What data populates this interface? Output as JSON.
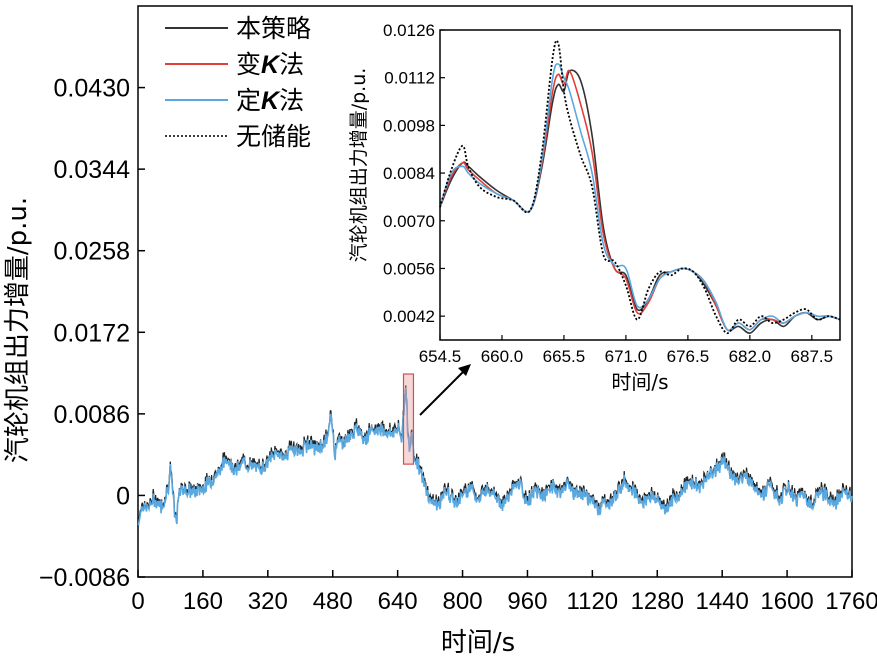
{
  "chart_data": [
    {
      "type": "line",
      "title": "",
      "xlabel": "时间/s",
      "ylabel": "汽轮机组出力增量/p.u.",
      "xlim": [
        0,
        1760
      ],
      "ylim": [
        -0.0086,
        0.0516
      ],
      "x_ticks": [
        "0",
        "160",
        "320",
        "480",
        "640",
        "800",
        "960",
        "1120",
        "1280",
        "1440",
        "1600",
        "1760"
      ],
      "y_ticks": [
        "-0.0086",
        "0",
        "0.0086",
        "0.0172",
        "0.0258",
        "0.0344",
        "0.0430"
      ],
      "y_tick_values": [
        -0.0086,
        0,
        0.0086,
        0.0172,
        0.0258,
        0.0344,
        0.043
      ],
      "x_tick_values": [
        0,
        160,
        320,
        480,
        640,
        800,
        960,
        1120,
        1280,
        1440,
        1600,
        1760
      ],
      "legend": {
        "placement": "top-left",
        "entries": [
          {
            "prefix": "本策略",
            "k": "",
            "suffix": "",
            "color": "#333333",
            "style": "solid"
          },
          {
            "prefix": "变",
            "k": "K",
            "suffix": "法",
            "color": "#e0403a",
            "style": "solid"
          },
          {
            "prefix": "定",
            "k": "K",
            "suffix": "法",
            "color": "#5aa8e0",
            "style": "solid"
          },
          {
            "prefix": "无储能",
            "k": "",
            "suffix": "",
            "color": "#000000",
            "style": "dotted"
          }
        ]
      },
      "highlight_region": {
        "x": [
          654.5,
          679
        ],
        "y": [
          0.0033,
          0.0128
        ]
      },
      "series": [
        {
          "color": "#5aa8e0",
          "x": [
            0,
            10,
            20,
            40,
            60,
            75,
            80,
            85,
            90,
            95,
            100,
            110,
            120,
            140,
            160,
            180,
            200,
            220,
            240,
            260,
            280,
            300,
            320,
            340,
            360,
            380,
            400,
            420,
            440,
            460,
            470,
            475,
            480,
            485,
            490,
            500,
            520,
            540,
            560,
            580,
            600,
            620,
            640,
            650,
            655,
            660,
            665,
            670,
            675,
            680,
            690,
            700,
            720,
            740,
            760,
            780,
            800,
            820,
            840,
            860,
            880,
            900,
            920,
            940,
            960,
            980,
            1000,
            1020,
            1040,
            1060,
            1080,
            1100,
            1120,
            1140,
            1150,
            1160,
            1180,
            1200,
            1220,
            1240,
            1260,
            1280,
            1300,
            1320,
            1340,
            1360,
            1380,
            1400,
            1420,
            1440,
            1460,
            1480,
            1500,
            1520,
            1540,
            1560,
            1580,
            1600,
            1620,
            1640,
            1660,
            1680,
            1700,
            1720,
            1740,
            1760
          ],
          "values": [
            -0.003,
            -0.001,
            -0.0015,
            -0.0005,
            -0.0012,
            0.001,
            0.003,
            0.0005,
            -0.002,
            -0.003,
            0.0,
            0.0008,
            0.0005,
            0.0003,
            0.0008,
            0.0015,
            0.0025,
            0.004,
            0.0025,
            0.0035,
            0.003,
            0.0028,
            0.0035,
            0.0045,
            0.004,
            0.005,
            0.0045,
            0.0055,
            0.0048,
            0.0055,
            0.0065,
            0.0085,
            0.007,
            0.004,
            0.006,
            0.0055,
            0.006,
            0.007,
            0.006,
            0.0068,
            0.007,
            0.0065,
            0.007,
            0.006,
            0.0085,
            0.012,
            0.0068,
            0.0045,
            0.0065,
            0.004,
            0.0035,
            0.0018,
            -0.0005,
            -0.001,
            0.0005,
            -0.0008,
            0.0,
            0.001,
            -0.0005,
            0.0008,
            0.0002,
            -0.0012,
            0.0005,
            0.0012,
            -0.0008,
            0.0005,
            -0.0002,
            0.001,
            0.0003,
            0.0012,
            0.0,
            0.0002,
            -0.0008,
            -0.0015,
            -0.0005,
            -0.0012,
            0.0002,
            0.0015,
            0.0005,
            -0.0008,
            0.0,
            -0.0005,
            -0.0015,
            -0.0005,
            0.0003,
            0.0015,
            0.0008,
            0.0018,
            0.0025,
            0.0035,
            0.0025,
            0.0015,
            0.002,
            0.001,
            0.0,
            0.0012,
            -0.0008,
            0.0008,
            -0.0005,
            0.0003,
            -0.0012,
            0.0005,
            -0.0002,
            -0.0008,
            0.0005,
            -0.0005
          ]
        }
      ]
    },
    {
      "type": "line",
      "title": "",
      "xlabel": "时间/s",
      "ylabel": "汽轮机组出力增量/p.u.",
      "xlim": [
        654.5,
        690
      ],
      "ylim": [
        0.0035,
        0.0126
      ],
      "x_ticks": [
        "654.5",
        "660.0",
        "665.5",
        "671.0",
        "676.5",
        "682.0",
        "687.5"
      ],
      "x_tick_values": [
        654.5,
        660.0,
        665.5,
        671.0,
        676.5,
        682.0,
        687.5
      ],
      "y_ticks": [
        "0.0042",
        "0.0056",
        "0.0070",
        "0.0084",
        "0.0098",
        "0.0112",
        "0.0126"
      ],
      "y_tick_values": [
        0.0042,
        0.0056,
        0.007,
        0.0084,
        0.0098,
        0.0112,
        0.0126
      ],
      "series": [
        {
          "name": "本策略",
          "color": "#333333",
          "style": "solid",
          "x": [
            654.5,
            655.5,
            656.5,
            657.0,
            658.0,
            659.5,
            661.0,
            662.5,
            663.5,
            664.5,
            665.0,
            665.5,
            666.0,
            667.0,
            668.0,
            669.0,
            670.0,
            671.0,
            672.0,
            673.0,
            674.0,
            675.0,
            676.0,
            677.0,
            678.0,
            679.0,
            680.0,
            681.0,
            682.0,
            683.0,
            684.0,
            685.0,
            686.0,
            687.0,
            688.0,
            689.0,
            690.0
          ],
          "values": [
            0.0074,
            0.0082,
            0.0087,
            0.0086,
            0.0083,
            0.0079,
            0.0076,
            0.0073,
            0.0085,
            0.0105,
            0.011,
            0.0108,
            0.0114,
            0.0111,
            0.0095,
            0.0068,
            0.0056,
            0.0054,
            0.0044,
            0.0047,
            0.0054,
            0.0055,
            0.0056,
            0.0055,
            0.0051,
            0.0045,
            0.0038,
            0.0039,
            0.0037,
            0.004,
            0.0041,
            0.0039,
            0.0042,
            0.0043,
            0.0041,
            0.0042,
            0.0041
          ]
        },
        {
          "name": "变K法",
          "color": "#e0403a",
          "style": "solid",
          "x": [
            654.5,
            655.5,
            656.5,
            657.0,
            658.0,
            659.5,
            661.0,
            662.5,
            663.5,
            664.5,
            665.0,
            665.5,
            666.0,
            667.0,
            668.0,
            669.0,
            670.0,
            671.0,
            672.0,
            673.0,
            674.0,
            675.0,
            676.0,
            677.0,
            678.0,
            679.0,
            680.0,
            681.0,
            682.0,
            683.0,
            684.0,
            685.0,
            686.0,
            687.0,
            688.0,
            689.0,
            690.0
          ],
          "values": [
            0.0074,
            0.0083,
            0.0087,
            0.0085,
            0.0082,
            0.0078,
            0.0076,
            0.0073,
            0.0086,
            0.0108,
            0.0113,
            0.011,
            0.0114,
            0.0104,
            0.009,
            0.0066,
            0.0056,
            0.0053,
            0.0043,
            0.0046,
            0.0053,
            0.0055,
            0.0056,
            0.0055,
            0.0052,
            0.0045,
            0.0038,
            0.004,
            0.0038,
            0.0041,
            0.0041,
            0.004,
            0.0042,
            0.0043,
            0.0042,
            0.0042,
            0.0041
          ]
        },
        {
          "name": "定K法",
          "color": "#5aa8e0",
          "style": "solid",
          "x": [
            654.5,
            655.5,
            656.5,
            657.0,
            658.0,
            659.5,
            661.0,
            662.5,
            663.5,
            664.5,
            665.0,
            665.5,
            666.0,
            667.0,
            668.0,
            669.0,
            670.0,
            671.0,
            672.0,
            673.0,
            674.0,
            675.0,
            676.0,
            677.0,
            678.0,
            679.0,
            680.0,
            681.0,
            682.0,
            683.0,
            684.0,
            685.0,
            686.0,
            687.0,
            688.0,
            689.0,
            690.0
          ],
          "values": [
            0.0074,
            0.0084,
            0.0086,
            0.0084,
            0.0081,
            0.0078,
            0.0076,
            0.0073,
            0.0087,
            0.0112,
            0.0116,
            0.0112,
            0.0108,
            0.0096,
            0.0084,
            0.0063,
            0.0057,
            0.0056,
            0.0045,
            0.0047,
            0.0053,
            0.0055,
            0.0056,
            0.0055,
            0.0052,
            0.0046,
            0.0038,
            0.004,
            0.0038,
            0.0041,
            0.0042,
            0.004,
            0.0042,
            0.0043,
            0.0042,
            0.0042,
            0.0041
          ]
        },
        {
          "name": "无储能",
          "color": "#000000",
          "style": "dotted",
          "x": [
            654.5,
            655.5,
            656.5,
            657.0,
            658.0,
            659.5,
            661.0,
            662.5,
            663.5,
            664.5,
            665.0,
            665.5,
            666.0,
            667.0,
            668.0,
            669.0,
            670.0,
            671.0,
            672.0,
            673.0,
            674.0,
            675.0,
            676.0,
            677.0,
            678.0,
            679.0,
            680.0,
            681.0,
            682.0,
            683.0,
            684.0,
            685.0,
            686.0,
            687.0,
            688.0,
            689.0,
            690.0
          ],
          "values": [
            0.0074,
            0.0085,
            0.0092,
            0.0086,
            0.008,
            0.0077,
            0.0076,
            0.0073,
            0.0089,
            0.0118,
            0.0122,
            0.0108,
            0.01,
            0.0089,
            0.008,
            0.006,
            0.0058,
            0.0051,
            0.0041,
            0.005,
            0.0055,
            0.0054,
            0.0056,
            0.0055,
            0.005,
            0.0042,
            0.0037,
            0.0041,
            0.0039,
            0.0042,
            0.004,
            0.0041,
            0.0043,
            0.0044,
            0.0041,
            0.0042,
            0.0041
          ]
        }
      ]
    }
  ]
}
